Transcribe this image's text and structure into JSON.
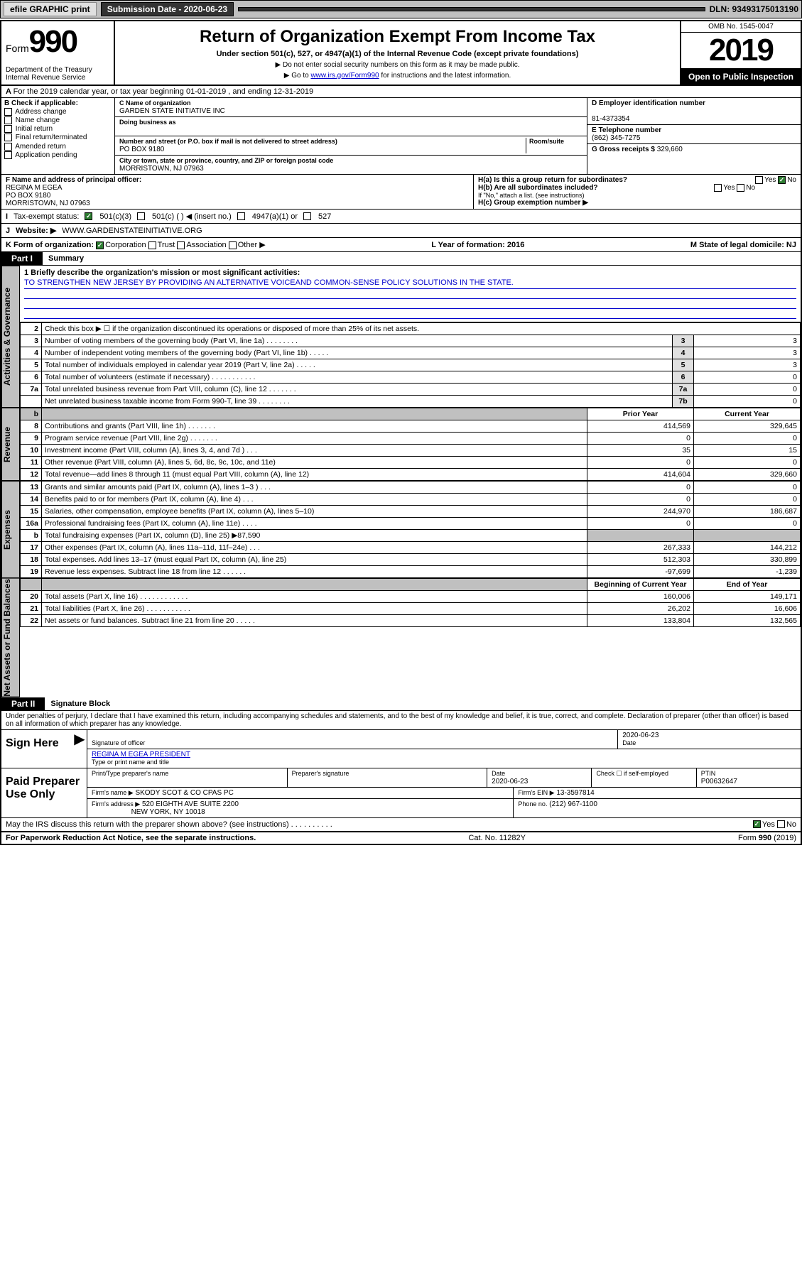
{
  "topbar": {
    "efile": "efile GRAPHIC print",
    "sub_label": "Submission Date - 2020-06-23",
    "dln": "DLN: 93493175013190"
  },
  "header": {
    "form_word": "Form",
    "form_num": "990",
    "dept": "Department of the Treasury\nInternal Revenue Service",
    "title": "Return of Organization Exempt From Income Tax",
    "subtitle": "Under section 501(c), 527, or 4947(a)(1) of the Internal Revenue Code (except private foundations)",
    "note1": "▶ Do not enter social security numbers on this form as it may be made public.",
    "note2_pre": "▶ Go to ",
    "note2_link": "www.irs.gov/Form990",
    "note2_post": " for instructions and the latest information.",
    "omb": "OMB No. 1545-0047",
    "year": "2019",
    "open": "Open to Public Inspection"
  },
  "rowA": "For the 2019 calendar year, or tax year beginning 01-01-2019    , and ending 12-31-2019",
  "B": {
    "label": "B Check if applicable:",
    "opts": [
      "Address change",
      "Name change",
      "Initial return",
      "Final return/terminated",
      "Amended return",
      "Application pending"
    ]
  },
  "C": {
    "name_label": "C Name of organization",
    "name": "GARDEN STATE INITIATIVE INC",
    "dba_label": "Doing business as",
    "dba": "",
    "addr_label": "Number and street (or P.O. box if mail is not delivered to street address)",
    "room_label": "Room/suite",
    "addr": "PO BOX 9180",
    "city_label": "City or town, state or province, country, and ZIP or foreign postal code",
    "city": "MORRISTOWN, NJ  07963"
  },
  "D": {
    "label": "D Employer identification number",
    "val": "81-4373354"
  },
  "E": {
    "label": "E Telephone number",
    "val": "(862) 345-7275"
  },
  "G": {
    "label": "G Gross receipts $",
    "val": "329,660"
  },
  "F": {
    "label": "F Name and address of principal officer:",
    "name": "REGINA M EGEA",
    "addr": "PO BOX 9180",
    "city": "MORRISTOWN, NJ  07963"
  },
  "H": {
    "a": "H(a)  Is this a group return for subordinates?",
    "a_yes": "Yes",
    "a_no": "No",
    "b": "H(b)  Are all subordinates included?",
    "b_yes": "Yes",
    "b_no": "No",
    "b_note": "If \"No,\" attach a list. (see instructions)",
    "c": "H(c)  Group exemption number ▶"
  },
  "I": {
    "label": "Tax-exempt status:",
    "o1": "501(c)(3)",
    "o2": "501(c) (  ) ◀ (insert no.)",
    "o3": "4947(a)(1) or",
    "o4": "527"
  },
  "J": {
    "label": "Website: ▶",
    "val": "WWW.GARDENSTATEINITIATIVE.ORG"
  },
  "K": {
    "label": "K Form of organization:",
    "o1": "Corporation",
    "o2": "Trust",
    "o3": "Association",
    "o4": "Other ▶",
    "L": "L Year of formation: 2016",
    "M": "M State of legal domicile: NJ"
  },
  "partI": {
    "tag": "Part I",
    "title": "Summary"
  },
  "mission": {
    "q": "1  Briefly describe the organization's mission or most significant activities:",
    "text": "TO STRENGTHEN NEW JERSEY BY PROVIDING AN ALTERNATIVE VOICEAND COMMON-SENSE POLICY SOLUTIONS IN THE STATE."
  },
  "gov_rows": [
    {
      "n": "2",
      "d": "Check this box ▶ ☐  if the organization discontinued its operations or disposed of more than 25% of its net assets.",
      "box": "",
      "v": ""
    },
    {
      "n": "3",
      "d": "Number of voting members of the governing body (Part VI, line 1a)  .  .  .  .  .  .  .  .",
      "box": "3",
      "v": "3"
    },
    {
      "n": "4",
      "d": "Number of independent voting members of the governing body (Part VI, line 1b)  .  .  .  .  .",
      "box": "4",
      "v": "3"
    },
    {
      "n": "5",
      "d": "Total number of individuals employed in calendar year 2019 (Part V, line 2a)  .  .  .  .  .",
      "box": "5",
      "v": "3"
    },
    {
      "n": "6",
      "d": "Total number of volunteers (estimate if necessary)  .  .  .  .  .  .  .  .  .  .  .",
      "box": "6",
      "v": "0"
    },
    {
      "n": "7a",
      "d": "Total unrelated business revenue from Part VIII, column (C), line 12  .  .  .  .  .  .  .",
      "box": "7a",
      "v": "0"
    },
    {
      "n": "",
      "d": "Net unrelated business taxable income from Form 990-T, line 39  .  .  .  .  .  .  .  .",
      "box": "7b",
      "v": "0"
    }
  ],
  "col_headers": {
    "prior": "Prior Year",
    "current": "Current Year"
  },
  "rev_rows": [
    {
      "n": "8",
      "d": "Contributions and grants (Part VIII, line 1h)  .  .  .  .  .  .  .",
      "p": "414,569",
      "c": "329,645"
    },
    {
      "n": "9",
      "d": "Program service revenue (Part VIII, line 2g)  .  .  .  .  .  .  .",
      "p": "0",
      "c": "0"
    },
    {
      "n": "10",
      "d": "Investment income (Part VIII, column (A), lines 3, 4, and 7d )  .  .  .",
      "p": "35",
      "c": "15"
    },
    {
      "n": "11",
      "d": "Other revenue (Part VIII, column (A), lines 5, 6d, 8c, 9c, 10c, and 11e)",
      "p": "0",
      "c": "0"
    },
    {
      "n": "12",
      "d": "Total revenue—add lines 8 through 11 (must equal Part VIII, column (A), line 12)",
      "p": "414,604",
      "c": "329,660"
    }
  ],
  "exp_rows": [
    {
      "n": "13",
      "d": "Grants and similar amounts paid (Part IX, column (A), lines 1–3 )  .  .  .",
      "p": "0",
      "c": "0"
    },
    {
      "n": "14",
      "d": "Benefits paid to or for members (Part IX, column (A), line 4)  .  .  .",
      "p": "0",
      "c": "0"
    },
    {
      "n": "15",
      "d": "Salaries, other compensation, employee benefits (Part IX, column (A), lines 5–10)",
      "p": "244,970",
      "c": "186,687"
    },
    {
      "n": "16a",
      "d": "Professional fundraising fees (Part IX, column (A), line 11e)  .  .  .  .",
      "p": "0",
      "c": "0"
    },
    {
      "n": "b",
      "d": "Total fundraising expenses (Part IX, column (D), line 25) ▶87,590",
      "p": "",
      "c": "",
      "gray": true
    },
    {
      "n": "17",
      "d": "Other expenses (Part IX, column (A), lines 11a–11d, 11f–24e)  .  .  .",
      "p": "267,333",
      "c": "144,212"
    },
    {
      "n": "18",
      "d": "Total expenses. Add lines 13–17 (must equal Part IX, column (A), line 25)",
      "p": "512,303",
      "c": "330,899"
    },
    {
      "n": "19",
      "d": "Revenue less expenses. Subtract line 18 from line 12  .  .  .  .  .  .",
      "p": "-97,699",
      "c": "-1,239"
    }
  ],
  "na_headers": {
    "begin": "Beginning of Current Year",
    "end": "End of Year"
  },
  "na_rows": [
    {
      "n": "20",
      "d": "Total assets (Part X, line 16)  .  .  .  .  .  .  .  .  .  .  .  .",
      "p": "160,006",
      "c": "149,171"
    },
    {
      "n": "21",
      "d": "Total liabilities (Part X, line 26)  .  .  .  .  .  .  .  .  .  .  .",
      "p": "26,202",
      "c": "16,606"
    },
    {
      "n": "22",
      "d": "Net assets or fund balances. Subtract line 21 from line 20  .  .  .  .  .",
      "p": "133,804",
      "c": "132,565"
    }
  ],
  "side_labels": {
    "gov": "Activities & Governance",
    "rev": "Revenue",
    "exp": "Expenses",
    "na": "Net Assets or Fund Balances"
  },
  "partII": {
    "tag": "Part II",
    "title": "Signature Block"
  },
  "penalty": "Under penalties of perjury, I declare that I have examined this return, including accompanying schedules and statements, and to the best of my knowledge and belief, it is true, correct, and complete. Declaration of preparer (other than officer) is based on all information of which preparer has any knowledge.",
  "sign": {
    "label": "Sign Here",
    "sig_label": "Signature of officer",
    "date_label": "Date",
    "date": "2020-06-23",
    "name": "REGINA M EGEA  PRESIDENT",
    "name_label": "Type or print name and title"
  },
  "paid": {
    "label": "Paid Preparer Use Only",
    "col1": "Print/Type preparer's name",
    "col2": "Preparer's signature",
    "col3": "Date",
    "date": "2020-06-23",
    "col4": "Check ☐ if self-employed",
    "col5": "PTIN",
    "ptin": "P00632647",
    "firm_label": "Firm's name    ▶",
    "firm": "SKODY SCOT & CO CPAS PC",
    "ein_label": "Firm's EIN ▶",
    "ein": "13-3597814",
    "addr_label": "Firm's address ▶",
    "addr": "520 EIGHTH AVE SUITE 2200",
    "addr2": "NEW YORK, NY  10018",
    "phone_label": "Phone no.",
    "phone": "(212) 967-1100"
  },
  "discuss": {
    "q": "May the IRS discuss this return with the preparer shown above? (see instructions)  .  .  .  .  .  .  .  .  .  .",
    "yes": "Yes",
    "no": "No"
  },
  "footer": {
    "left": "For Paperwork Reduction Act Notice, see the separate instructions.",
    "mid": "Cat. No. 11282Y",
    "right": "Form 990 (2019)"
  },
  "colors": {
    "bg": "#ffffff",
    "border": "#000000",
    "gray": "#c0c0c0",
    "lightgray": "#e0e0e0",
    "link": "#0000cc",
    "green": "#2e7d32"
  }
}
